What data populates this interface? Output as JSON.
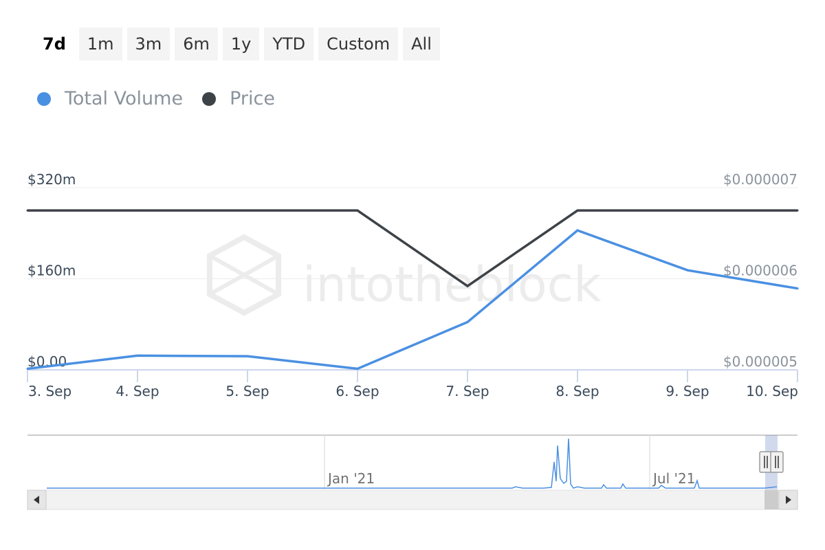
{
  "range_selector": {
    "buttons": [
      {
        "label": "7d",
        "active": true
      },
      {
        "label": "1m",
        "active": false
      },
      {
        "label": "3m",
        "active": false
      },
      {
        "label": "6m",
        "active": false
      },
      {
        "label": "1y",
        "active": false
      },
      {
        "label": "YTD",
        "active": false
      },
      {
        "label": "Custom",
        "active": false
      },
      {
        "label": "All",
        "active": false
      }
    ]
  },
  "legend": {
    "items": [
      {
        "label": "Total Volume",
        "color": "#4a90e2"
      },
      {
        "label": "Price",
        "color": "#3d4247"
      }
    ]
  },
  "watermark": "intotheblock",
  "chart_data": {
    "type": "line",
    "categories": [
      "3. Sep",
      "4. Sep",
      "5. Sep",
      "6. Sep",
      "7. Sep",
      "8. Sep",
      "9. Sep",
      "10. Sep"
    ],
    "series": [
      {
        "name": "Total Volume",
        "axis": "left",
        "color": "#4a90e2",
        "values": [
          2,
          25,
          24,
          2,
          84,
          245,
          175,
          143
        ]
      },
      {
        "name": "Price",
        "axis": "right",
        "color": "#3d4247",
        "values": [
          6.75e-06,
          6.75e-06,
          6.75e-06,
          6.75e-06,
          5.92e-06,
          6.75e-06,
          6.75e-06,
          6.75e-06
        ]
      }
    ],
    "y_left": {
      "ticks": [
        "$0.00",
        "$160m",
        "$320m"
      ],
      "ylim": [
        0,
        320
      ]
    },
    "y_right": {
      "ticks": [
        "$0.000005",
        "$0.000006",
        "$0.000007"
      ],
      "ylim": [
        5e-06,
        7e-06
      ]
    },
    "grid": true
  },
  "navigator": {
    "labels": [
      "Jan '21",
      "Jul '21"
    ],
    "series_color": "#4a90e2"
  }
}
